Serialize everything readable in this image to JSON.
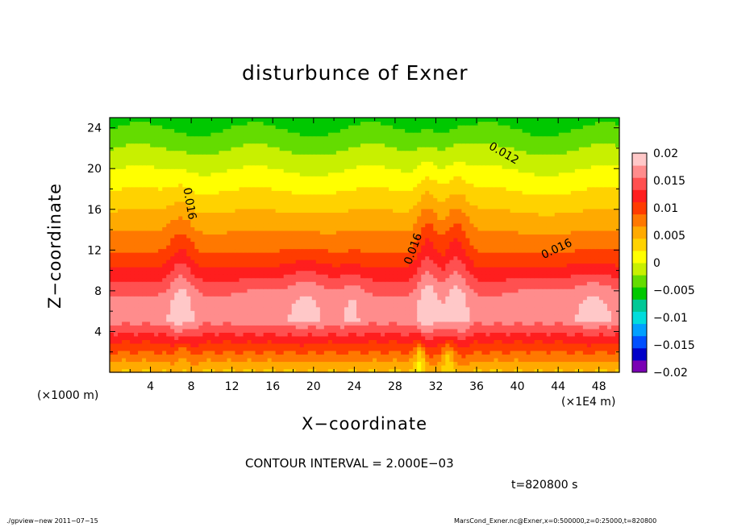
{
  "chart_data": {
    "type": "heatmap",
    "title": "disturbunce of Exner",
    "xlabel": "X−coordinate",
    "ylabel": "Z−coordinate",
    "x_unit_left": "(×1000 m)",
    "x_unit_right": "(×1E4 m)",
    "x_ticks": [
      "4",
      "8",
      "12",
      "16",
      "20",
      "24",
      "28",
      "32",
      "36",
      "40",
      "44",
      "48"
    ],
    "y_ticks": [
      "4",
      "8",
      "12",
      "16",
      "20",
      "24"
    ],
    "xlim": [
      0,
      50
    ],
    "ylim": [
      0,
      25
    ],
    "colorbar_ticks": [
      "0.02",
      "0.015",
      "0.01",
      "0.005",
      "0",
      "−0.005",
      "−0.01",
      "−0.015",
      "−0.02"
    ],
    "colorbar_range": [
      -0.02,
      0.02
    ],
    "contour_labels": [
      {
        "text": "0.016",
        "x": 7.5,
        "y": 16.5
      },
      {
        "text": "0.012",
        "x": 38.5,
        "y": 21.2
      },
      {
        "text": "0.016",
        "x": 30.1,
        "y": 12.0
      },
      {
        "text": "0.016",
        "x": 44.0,
        "y": 11.8
      }
    ],
    "contour_interval": "CONTOUR INTERVAL = 2.000E−03",
    "time": "t=820800 s",
    "grid": false,
    "legend": "right colorbar"
  },
  "footer": {
    "left": "./gpview−new   2011−07−15",
    "right": "MarsCond_Exner.nc@Exner,x=0:500000,z=0:25000,t=820800"
  },
  "colors": {
    "palette": [
      "#7a00b4",
      "#0000c8",
      "#0050ff",
      "#00a0ff",
      "#00dcdc",
      "#00c896",
      "#00c800",
      "#64dc00",
      "#c8f000",
      "#ffff00",
      "#ffd200",
      "#ffaa00",
      "#ff7800",
      "#ff3c00",
      "#ff1e1e",
      "#ff5050",
      "#ff8c8c",
      "#ffc8c8"
    ]
  }
}
